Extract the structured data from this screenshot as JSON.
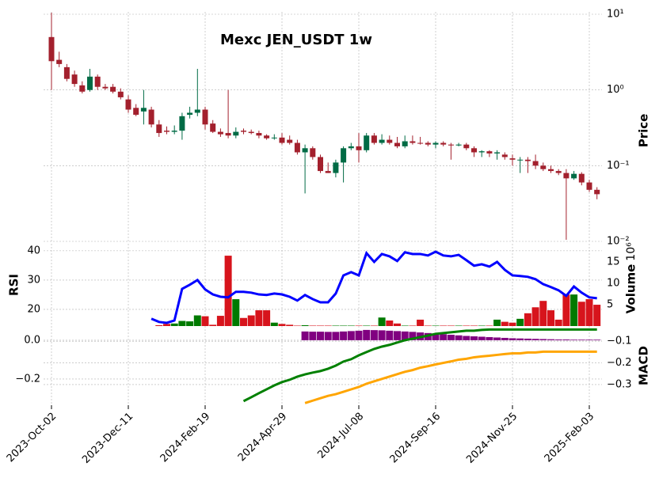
{
  "chart_data": {
    "type": "candlestick",
    "title": "Mexc JEN_USDT 1w",
    "ylabel": "Price",
    "log_y": true,
    "grid": true,
    "categories": [
      "2023-Oct-02",
      null,
      null,
      null,
      null,
      null,
      null,
      null,
      null,
      null,
      "2023-Dec-11",
      null,
      null,
      null,
      null,
      null,
      null,
      null,
      null,
      null,
      "2024-Feb-19",
      null,
      null,
      null,
      null,
      null,
      null,
      null,
      null,
      null,
      "2024-Apr-29",
      null,
      null,
      null,
      null,
      null,
      null,
      null,
      null,
      null,
      "2024-Jul-08",
      null,
      null,
      null,
      null,
      null,
      null,
      null,
      null,
      null,
      "2024-Sep-16",
      null,
      null,
      null,
      null,
      null,
      null,
      null,
      null,
      null,
      "2024-Nov-25",
      null,
      null,
      null,
      null,
      null,
      null,
      null,
      null,
      null,
      "2025-Feb-03",
      null
    ],
    "open": [
      5.0,
      2.5,
      2.0,
      1.6,
      1.15,
      1.0,
      1.5,
      1.1,
      1.1,
      0.95,
      0.75,
      0.58,
      0.52,
      0.55,
      0.35,
      0.29,
      0.28,
      0.29,
      0.47,
      0.5,
      0.55,
      0.36,
      0.28,
      0.27,
      0.25,
      0.29,
      0.28,
      0.27,
      0.25,
      0.23,
      0.235,
      0.22,
      0.2,
      0.15,
      0.17,
      0.13,
      0.085,
      0.08,
      0.11,
      0.17,
      0.18,
      0.16,
      0.25,
      0.2,
      0.22,
      0.2,
      0.18,
      0.21,
      0.2,
      0.2,
      0.19,
      0.2,
      0.19,
      0.185,
      0.19,
      0.17,
      0.15,
      0.155,
      0.145,
      0.14,
      0.125,
      0.12,
      0.12,
      0.115,
      0.1,
      0.09,
      0.085,
      0.08,
      0.068,
      0.078,
      0.06,
      0.048
    ],
    "high": [
      10.5,
      3.2,
      2.2,
      1.8,
      1.3,
      1.9,
      1.6,
      1.2,
      1.2,
      1.05,
      0.85,
      0.65,
      1.0,
      0.6,
      0.4,
      0.33,
      0.34,
      0.5,
      0.6,
      1.9,
      0.6,
      0.4,
      0.31,
      1.0,
      0.32,
      0.31,
      0.3,
      0.29,
      0.26,
      0.26,
      0.27,
      0.25,
      0.22,
      0.19,
      0.18,
      0.14,
      0.11,
      0.12,
      0.18,
      0.2,
      0.27,
      0.27,
      0.27,
      0.26,
      0.25,
      0.24,
      0.25,
      0.25,
      0.24,
      0.21,
      0.21,
      0.21,
      0.2,
      0.2,
      0.2,
      0.18,
      0.16,
      0.16,
      0.16,
      0.15,
      0.14,
      0.13,
      0.13,
      0.14,
      0.11,
      0.1,
      0.09,
      0.09,
      0.085,
      0.082,
      0.065,
      0.052
    ],
    "low": [
      1.0,
      2.0,
      1.3,
      1.1,
      0.9,
      0.95,
      1.0,
      1.0,
      0.9,
      0.75,
      0.5,
      0.45,
      0.35,
      0.32,
      0.24,
      0.26,
      0.26,
      0.22,
      0.42,
      0.45,
      0.3,
      0.27,
      0.24,
      0.23,
      0.23,
      0.26,
      0.26,
      0.23,
      0.22,
      0.22,
      0.19,
      0.19,
      0.14,
      0.043,
      0.12,
      0.08,
      0.08,
      0.07,
      0.06,
      0.16,
      0.11,
      0.15,
      0.19,
      0.19,
      0.19,
      0.17,
      0.17,
      0.19,
      0.19,
      0.18,
      0.17,
      0.18,
      0.12,
      0.18,
      0.16,
      0.13,
      0.13,
      0.13,
      0.12,
      0.12,
      0.1,
      0.08,
      0.08,
      0.09,
      0.085,
      0.08,
      0.075,
      0.0105,
      0.065,
      0.055,
      0.045,
      0.036
    ],
    "close": [
      2.4,
      2.2,
      1.4,
      1.2,
      0.95,
      1.5,
      1.1,
      1.05,
      0.95,
      0.8,
      0.55,
      0.47,
      0.58,
      0.35,
      0.27,
      0.28,
      0.29,
      0.45,
      0.5,
      0.55,
      0.35,
      0.28,
      0.26,
      0.25,
      0.28,
      0.28,
      0.27,
      0.25,
      0.23,
      0.235,
      0.2,
      0.2,
      0.15,
      0.17,
      0.13,
      0.085,
      0.08,
      0.11,
      0.17,
      0.18,
      0.16,
      0.25,
      0.2,
      0.22,
      0.2,
      0.18,
      0.21,
      0.2,
      0.195,
      0.19,
      0.2,
      0.19,
      0.185,
      0.19,
      0.17,
      0.15,
      0.155,
      0.145,
      0.15,
      0.13,
      0.12,
      0.12,
      0.115,
      0.1,
      0.09,
      0.085,
      0.08,
      0.068,
      0.078,
      0.06,
      0.048,
      0.042
    ],
    "up_color": "#006b45",
    "down_color": "#a3202d",
    "ylim": [
      0.01,
      10.75
    ],
    "yticks": [
      {
        "value": 10,
        "label": "10¹"
      },
      {
        "value": 1,
        "label": "10⁰"
      },
      {
        "value": 0.1,
        "label": "10⁻¹"
      },
      {
        "value": 0.01,
        "label": "10⁻²"
      }
    ],
    "volume": {
      "ylabel": "Volume",
      "offset_label": "10⁶",
      "up_color": "#007a00",
      "down_color": "#d7141c",
      "values": [
        0,
        0,
        0,
        0,
        0,
        0,
        0,
        0,
        0,
        0,
        0,
        0,
        0,
        0,
        0.2,
        0.5,
        0.6,
        1.2,
        1.1,
        2.5,
        2.3,
        0.3,
        2.4,
        16.5,
        6.3,
        1.9,
        2.5,
        3.7,
        3.7,
        0.8,
        0.5,
        0.3,
        0.1,
        0.2,
        0.1,
        0.1,
        0.1,
        0.1,
        0.1,
        0.1,
        0.1,
        0.1,
        0.1,
        2.0,
        1.3,
        0.6,
        0.1,
        0.1,
        1.5,
        0.1,
        0.1,
        0.1,
        0.1,
        0.1,
        0.1,
        0.1,
        0.1,
        0.1,
        1.5,
        1.0,
        0.8,
        1.7,
        3.0,
        4.4,
        5.9,
        3.7,
        1.5,
        7.4,
        7.4,
        5.7,
        6.3,
        5.0
      ],
      "ylim": [
        0,
        19.3
      ],
      "yticks": [
        5,
        10,
        15
      ]
    },
    "rsi": {
      "ylabel": "RSI",
      "color": "#0000ff",
      "values": [
        null,
        null,
        null,
        null,
        null,
        null,
        null,
        null,
        null,
        null,
        null,
        null,
        null,
        16.8,
        15.7,
        15.4,
        16.2,
        27,
        28.4,
        30,
        26.8,
        25.1,
        24.3,
        24.1,
        26,
        26,
        25.7,
        25.1,
        24.9,
        25.4,
        25.1,
        24.3,
        23,
        24.9,
        23.5,
        22.4,
        22.4,
        25.4,
        31.6,
        32.7,
        31.6,
        39.2,
        36.2,
        38.9,
        38.1,
        36.5,
        39.5,
        38.9,
        38.9,
        38.4,
        39.7,
        38.4,
        38.1,
        38.6,
        36.8,
        34.9,
        35.4,
        34.6,
        36.2,
        33.5,
        31.6,
        31.4,
        31.1,
        30.3,
        28.6,
        27.6,
        26.5,
        24.6,
        27.8,
        25.7,
        24.1,
        23.8
      ],
      "ylim": [
        14.3,
        42.4
      ],
      "yticks": [
        20,
        30,
        40
      ]
    },
    "macd": {
      "ylabel": "MACD",
      "macd_color": "#008000",
      "signal_color": "#ffa500",
      "hist_color": "#800080",
      "macd": [
        null,
        null,
        null,
        null,
        null,
        null,
        null,
        null,
        null,
        null,
        null,
        null,
        null,
        null,
        null,
        null,
        null,
        null,
        null,
        null,
        null,
        null,
        null,
        null,
        null,
        -0.314,
        -0.294,
        -0.273,
        -0.253,
        -0.233,
        -0.216,
        -0.204,
        -0.188,
        -0.176,
        -0.167,
        -0.159,
        -0.147,
        -0.131,
        -0.11,
        -0.098,
        -0.078,
        -0.061,
        -0.045,
        -0.033,
        -0.024,
        -0.012,
        0,
        0.008,
        0.016,
        0.024,
        0.033,
        0.037,
        0.041,
        0.045,
        0.049,
        0.049,
        0.053,
        0.055,
        0.055,
        0.055,
        0.055,
        0.055,
        0.055,
        0.055,
        0.055,
        0.055,
        0.055,
        0.055,
        0.055,
        0.055,
        0.055,
        0.055
      ],
      "hist": [
        null,
        null,
        null,
        null,
        null,
        null,
        null,
        null,
        null,
        null,
        null,
        null,
        null,
        null,
        null,
        null,
        null,
        null,
        null,
        null,
        null,
        null,
        null,
        null,
        null,
        null,
        null,
        null,
        null,
        null,
        null,
        null,
        null,
        0.045,
        0.044,
        0.044,
        0.043,
        0.043,
        0.045,
        0.047,
        0.049,
        0.053,
        0.052,
        0.051,
        0.049,
        0.047,
        0.045,
        0.043,
        0.04,
        0.037,
        0.034,
        0.031,
        0.028,
        0.025,
        0.022,
        0.02,
        0.018,
        0.016,
        0.014,
        0.012,
        0.01,
        0.009,
        0.008,
        0.007,
        0.006,
        0.005,
        0.004,
        0.004,
        0.003,
        0.003,
        0.003,
        0.003
      ],
      "signal": [
        null,
        null,
        null,
        null,
        null,
        null,
        null,
        null,
        null,
        null,
        null,
        null,
        null,
        null,
        null,
        null,
        null,
        null,
        null,
        null,
        null,
        null,
        null,
        null,
        null,
        null,
        null,
        null,
        null,
        null,
        null,
        null,
        null,
        -0.385,
        -0.374,
        -0.363,
        -0.352,
        -0.344,
        -0.333,
        -0.322,
        -0.311,
        -0.296,
        -0.285,
        -0.274,
        -0.263,
        -0.252,
        -0.241,
        -0.233,
        -0.222,
        -0.215,
        -0.207,
        -0.2,
        -0.193,
        -0.185,
        -0.181,
        -0.174,
        -0.17,
        -0.167,
        -0.163,
        -0.159,
        -0.156,
        -0.156,
        -0.152,
        -0.152,
        -0.148,
        -0.148,
        -0.148,
        -0.148,
        -0.148,
        -0.148,
        -0.148,
        -0.148
      ],
      "ylim": [
        -0.335,
        0.073
      ],
      "yticks": [
        {
          "value": 0,
          "label": "0.0"
        },
        {
          "value": -0.2,
          "label": "−0.2"
        }
      ],
      "y2lim": [
        -0.395,
        -0.03
      ],
      "y2ticks": [
        {
          "value": -0.1,
          "label": "−0.1"
        },
        {
          "value": -0.2,
          "label": "−0.2"
        },
        {
          "value": -0.3,
          "label": "−0.3"
        }
      ]
    }
  }
}
